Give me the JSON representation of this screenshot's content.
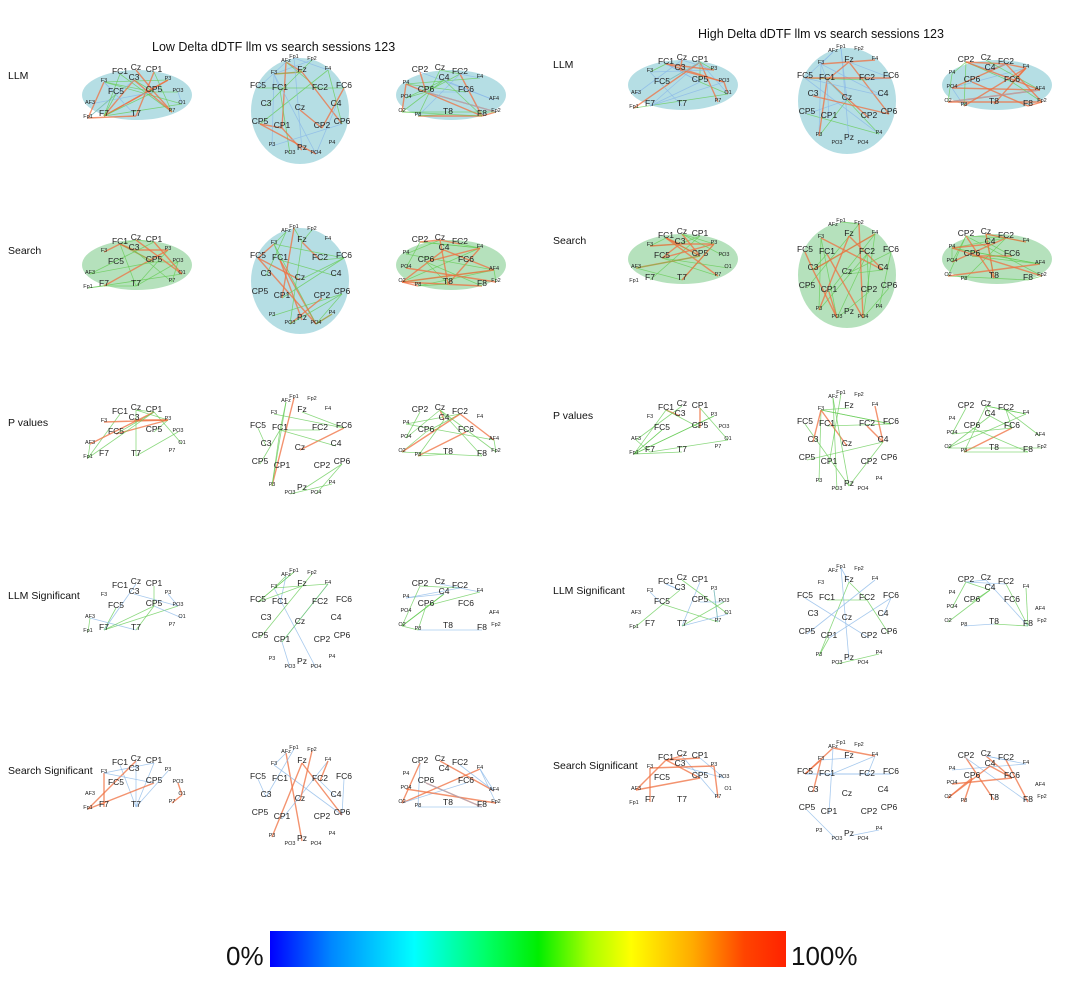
{
  "panels": [
    {
      "title": "Low Delta dDTF llm vs search sessions 123"
    },
    {
      "title": "High Delta dDTF llm vs search sessions 123"
    }
  ],
  "row_labels": [
    "LLM",
    "Search",
    "P values",
    "LLM Significant",
    "Search Significant"
  ],
  "views": {
    "left": [
      "FC1",
      "Cz",
      "CP1",
      "F3",
      "C3",
      "FC5",
      "CP5",
      "P3",
      "F7",
      "T7",
      "AF3",
      "Fp1",
      "PO3",
      "O1",
      "P7"
    ],
    "top": [
      "AFz",
      "Fz",
      "FC1",
      "FC2",
      "Cz",
      "CP1",
      "CP2",
      "Pz",
      "PO3",
      "PO4",
      "F3",
      "F4",
      "C3",
      "C4",
      "P3",
      "P4",
      "FC5",
      "FC6",
      "CP5",
      "CP6",
      "Fp1",
      "Fp2"
    ],
    "right": [
      "CP2",
      "Cz",
      "FC2",
      "F4",
      "C4",
      "CP6",
      "FC6",
      "P4",
      "PO4",
      "T8",
      "F8",
      "AF4",
      "Fp2",
      "P8",
      "O2"
    ]
  },
  "colors": {
    "low": "#2030ff",
    "mid": "#00cc33",
    "high": "#ff2a00",
    "head_fill": "#a8d8df",
    "green_fill": "#a8dcb0",
    "orange_edge": "#f07040",
    "green_edge": "#66cc55",
    "blue_edge": "#8ab8e8"
  },
  "colorbar": {
    "min_label": "0%",
    "max_label": "100%"
  }
}
